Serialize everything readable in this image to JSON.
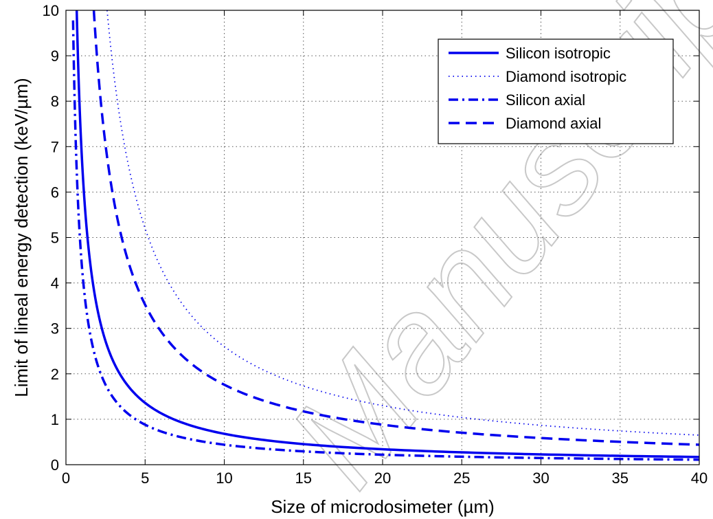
{
  "chart_data": {
    "type": "line",
    "title": "",
    "xlabel": "Size of microdosimeter (µm)",
    "ylabel": "Limit of lineal energy detection (keV/µm)",
    "xlim": [
      0,
      40
    ],
    "ylim": [
      0,
      10
    ],
    "xticks": [
      "0",
      "5",
      "10",
      "15",
      "20",
      "25",
      "30",
      "35",
      "40"
    ],
    "yticks": [
      "0",
      "1",
      "2",
      "3",
      "4",
      "5",
      "6",
      "7",
      "8",
      "9",
      "10"
    ],
    "grid": true,
    "legend_position": "top-right",
    "line_color": "#0000ee",
    "series": [
      {
        "name": "Silicon isotropic",
        "style": "solid",
        "x": [
          0.67,
          1,
          2,
          3,
          4,
          5,
          6,
          8,
          10,
          15,
          20,
          25,
          30,
          35,
          40
        ],
        "y": [
          10,
          6.7,
          3.3,
          2.2,
          1.65,
          1.33,
          1.1,
          0.83,
          0.67,
          0.44,
          0.33,
          0.27,
          0.22,
          0.19,
          0.17
        ]
      },
      {
        "name": "Diamond isotropic",
        "style": "dotted",
        "x": [
          2.6,
          3,
          4,
          5,
          6,
          8,
          10,
          15,
          20,
          25,
          30,
          35,
          40
        ],
        "y": [
          10,
          8.6,
          6.5,
          5.2,
          4.3,
          3.25,
          2.6,
          1.73,
          1.3,
          1.04,
          0.87,
          0.74,
          0.65
        ]
      },
      {
        "name": "Silicon axial",
        "style": "dashdot",
        "x": [
          0.45,
          1,
          2,
          3,
          4,
          5,
          6,
          8,
          10,
          15,
          20,
          25,
          30,
          35,
          40
        ],
        "y": [
          10,
          4.5,
          2.25,
          1.5,
          1.12,
          0.9,
          0.75,
          0.56,
          0.45,
          0.3,
          0.22,
          0.18,
          0.15,
          0.13,
          0.11
        ]
      },
      {
        "name": "Diamond axial",
        "style": "dashed",
        "x": [
          1.75,
          2,
          3,
          4,
          5,
          6,
          8,
          10,
          15,
          20,
          25,
          30,
          35,
          40
        ],
        "y": [
          10,
          8.75,
          5.85,
          4.4,
          3.5,
          2.9,
          2.2,
          1.75,
          1.17,
          0.88,
          0.7,
          0.58,
          0.5,
          0.44
        ]
      }
    ]
  },
  "watermark": "Manuscript"
}
